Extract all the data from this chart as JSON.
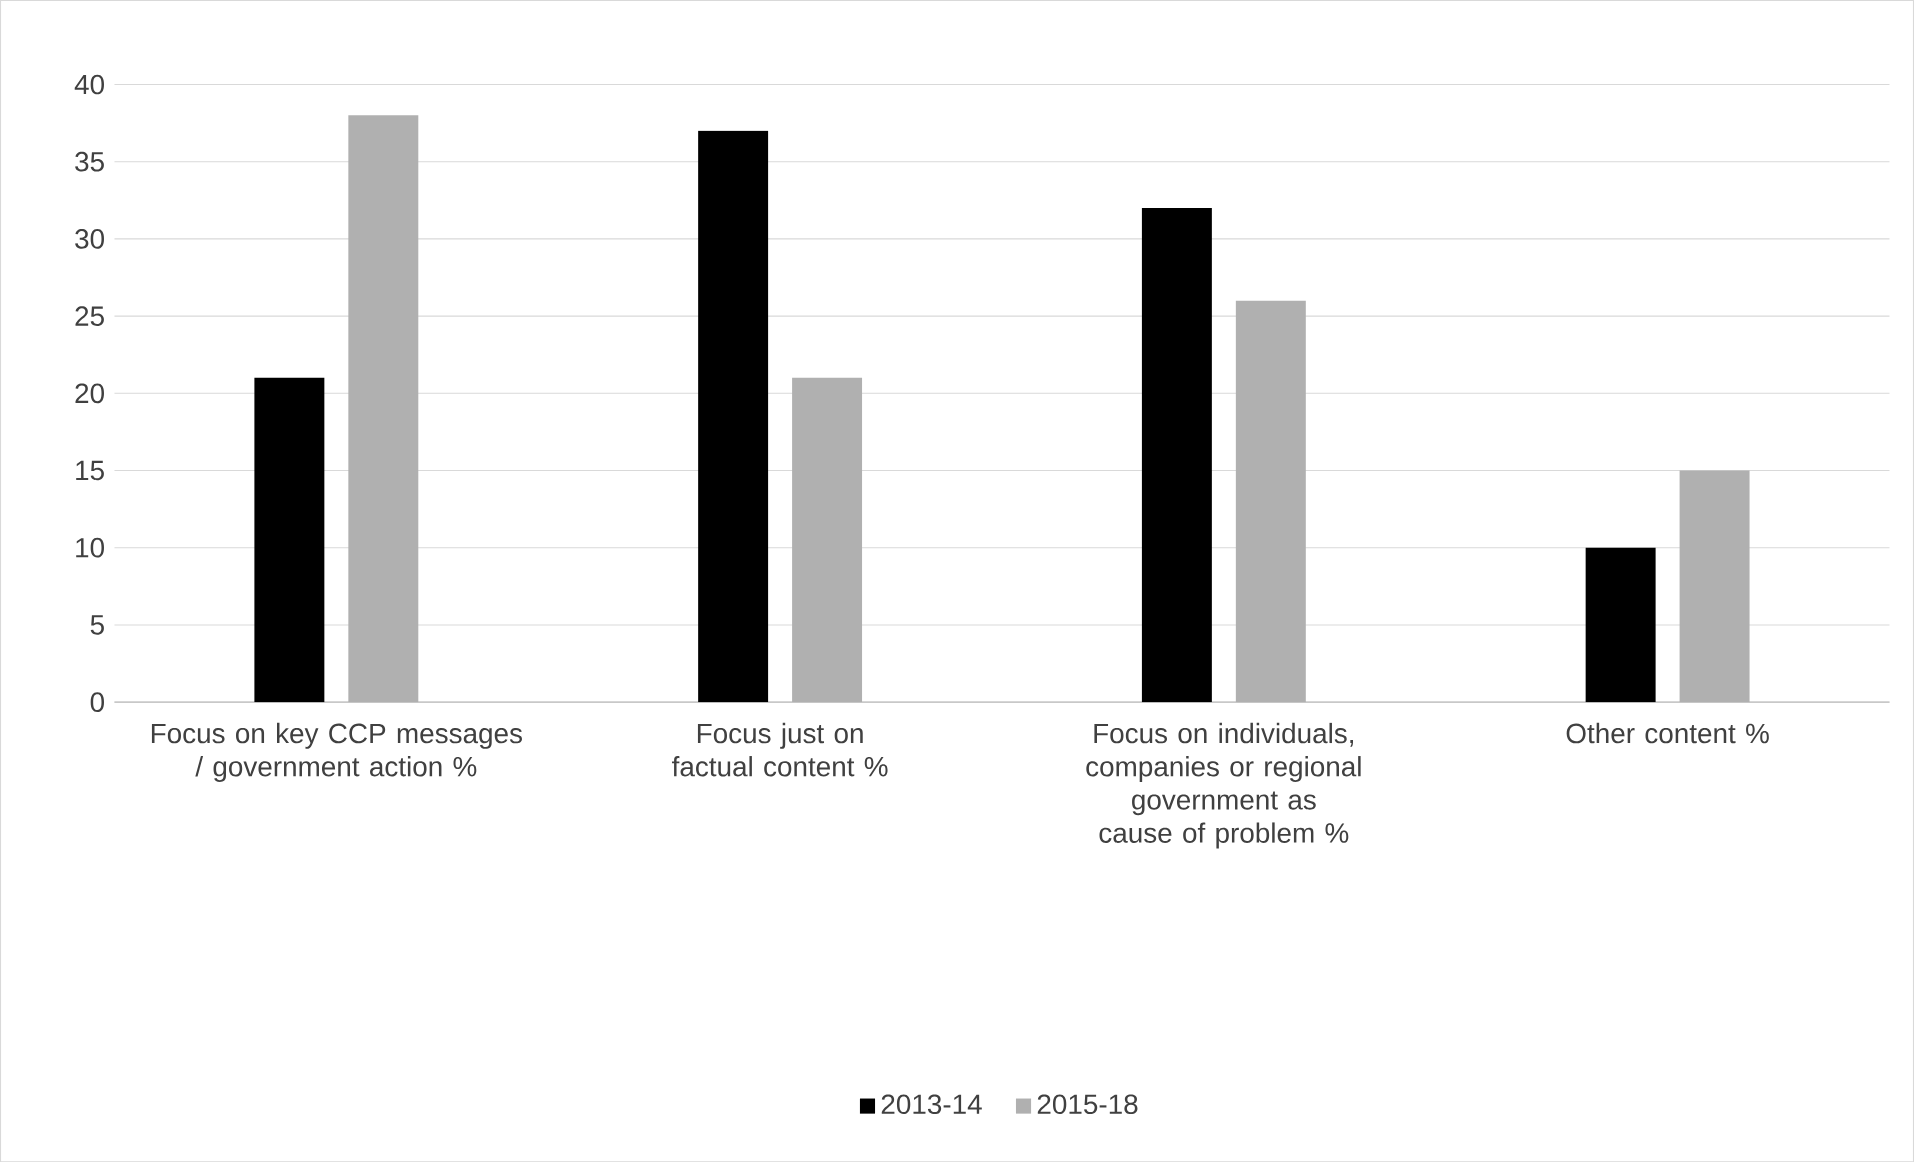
{
  "chart_data": {
    "type": "bar",
    "categories": [
      "Focus on key CCP messages / government action %",
      "Focus just on factual content %",
      "Focus on individuals, companies or regional government as cause of problem %",
      "Other content %"
    ],
    "series": [
      {
        "name": "2013-14",
        "color": "#000000",
        "values": [
          21,
          37,
          32,
          10
        ]
      },
      {
        "name": "2015-18",
        "color": "#b0b0b0",
        "values": [
          38,
          21,
          26,
          15
        ]
      }
    ],
    "ylim": [
      0,
      40
    ],
    "yticks": [
      0,
      5,
      10,
      15,
      20,
      25,
      30,
      35,
      40
    ],
    "grid": "y",
    "legend": "bottom"
  }
}
